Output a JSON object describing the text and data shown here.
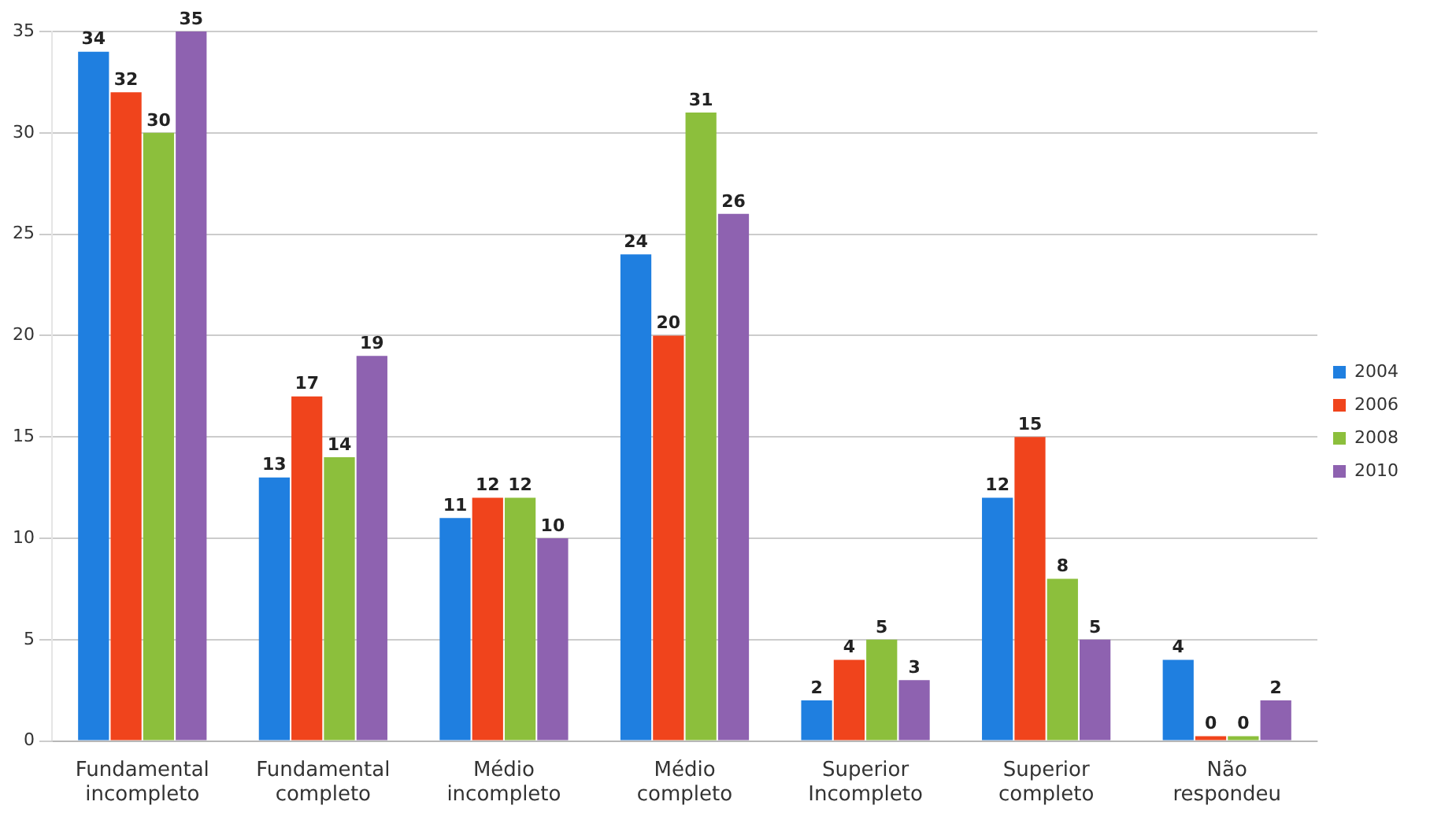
{
  "chart_data": {
    "type": "bar",
    "categories": [
      "Fundamental incompleto",
      "Fundamental completo",
      "Médio incompleto",
      "Médio completo",
      "Superior Incompleto",
      "Superior completo",
      "Não respondeu"
    ],
    "series": [
      {
        "name": "2004",
        "color": "#1f7fe0",
        "values": [
          34,
          13,
          11,
          24,
          2,
          12,
          4
        ]
      },
      {
        "name": "2006",
        "color": "#f0441c",
        "values": [
          32,
          17,
          12,
          20,
          4,
          15,
          0
        ]
      },
      {
        "name": "2008",
        "color": "#8cbf3c",
        "values": [
          30,
          14,
          12,
          31,
          5,
          8,
          0
        ]
      },
      {
        "name": "2010",
        "color": "#8e62b0",
        "values": [
          35,
          19,
          10,
          26,
          3,
          5,
          2
        ]
      }
    ],
    "ylim": [
      0,
      35
    ],
    "yticks": [
      0,
      5,
      10,
      15,
      20,
      25,
      30,
      35
    ],
    "grid": "y",
    "legend": "right",
    "data_labels": true
  }
}
